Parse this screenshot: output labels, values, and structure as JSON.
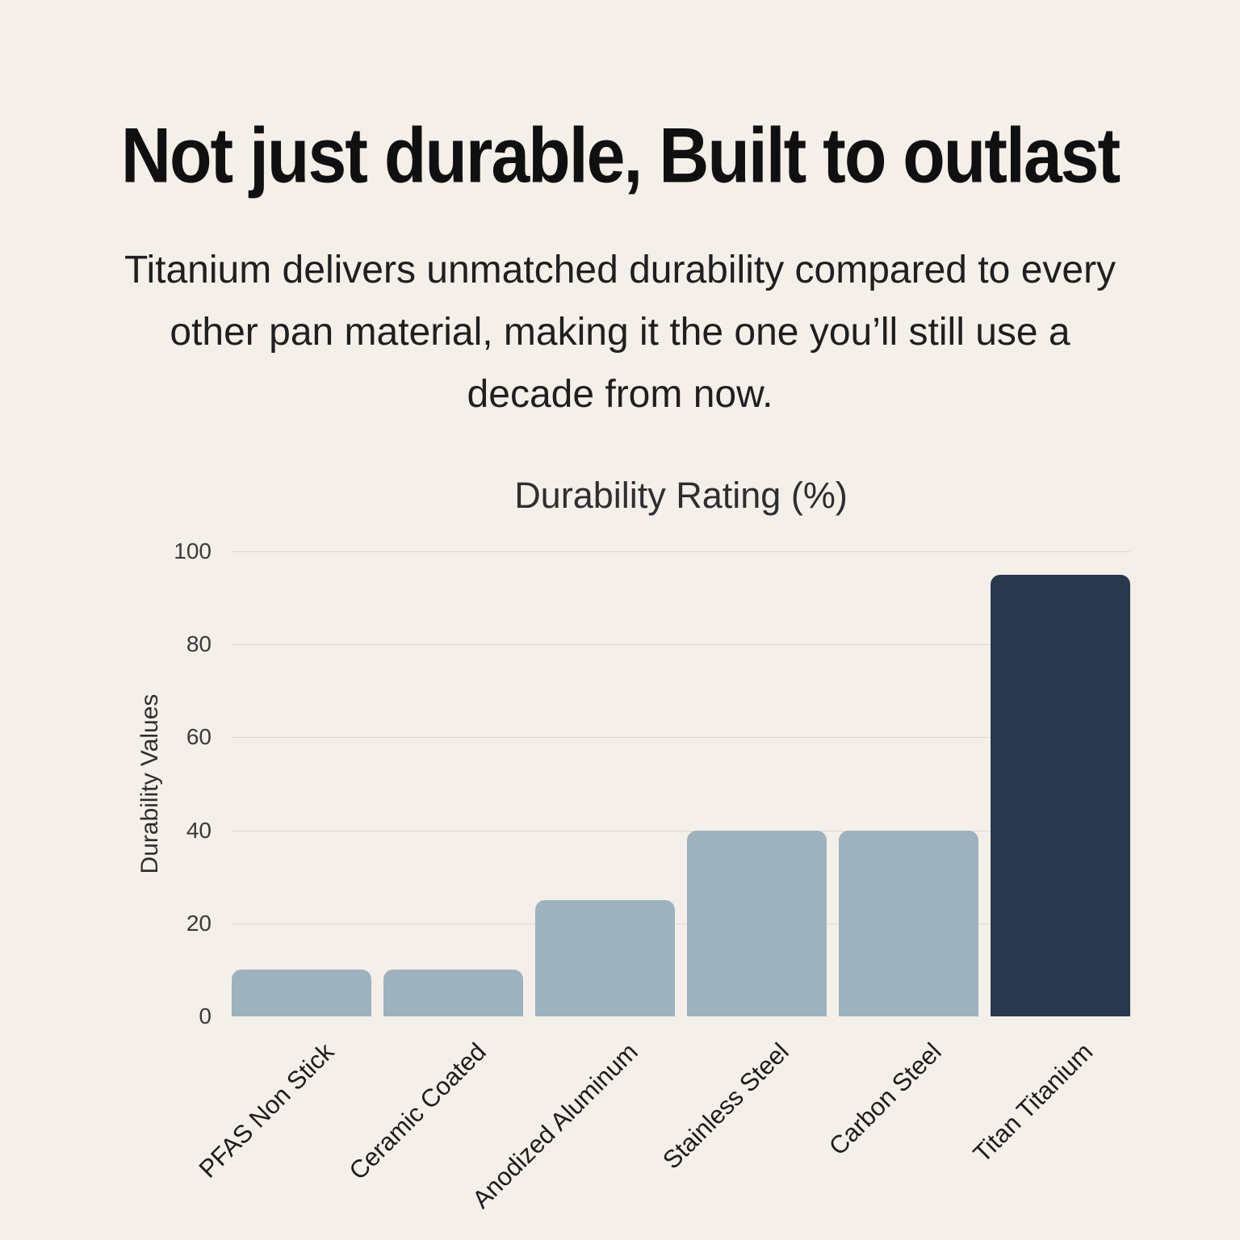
{
  "page": {
    "background": "#F4EFE8",
    "title": "Not just durable, Built to outlast",
    "subtitle": "Titanium delivers unmatched durability compared to every other pan material, making it the one you’ll still use a decade from now.",
    "subtitle_lines": [
      "Titanium delivers unmatched durability compared to every",
      "other pan material, making it the one you’ll still use a",
      "decade from now."
    ]
  },
  "chart_data": {
    "type": "bar",
    "title": "Durability Rating (%)",
    "xlabel": "",
    "ylabel": "Durability Values",
    "categories": [
      "PFAS Non Stick",
      "Ceramic Coated",
      "Anodized Aluminum",
      "Stainless Steel",
      "Carbon Steel",
      "Titan Titanium"
    ],
    "values": [
      10,
      10,
      25,
      40,
      40,
      95
    ],
    "ylim": [
      0,
      100
    ],
    "yticks": [
      0,
      20,
      40,
      60,
      80,
      100
    ],
    "grid": "horizontal gridlines, no zero line, no axis spines",
    "legend": "none",
    "tick_label_rotation_deg": 45,
    "colors": {
      "bar_default": "#9DB1BF",
      "bar_highlight": "#28394E",
      "highlight_index": 5,
      "background": "#F4EFE8",
      "gridline": "#DBD6CF",
      "text": "#2E2E2E"
    }
  }
}
